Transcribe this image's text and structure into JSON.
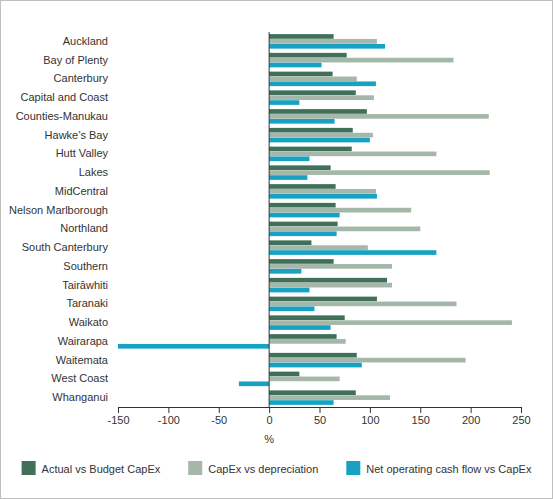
{
  "chart_data": {
    "type": "bar",
    "orientation": "horizontal",
    "categories": [
      "Auckland",
      "Bay of Plenty",
      "Canterbury",
      "Capital and Coast",
      "Counties-Manukau",
      "Hawke’s Bay",
      "Hutt Valley",
      "Lakes",
      "MidCentral",
      "Nelson Marlborough",
      "Northland",
      "South Canterbury",
      "Southern",
      "Tairāwhiti",
      "Taranaki",
      "Waikato",
      "Wairarapa",
      "Waitemata",
      "West Coast",
      "Whanganui"
    ],
    "series": [
      {
        "name": "Actual vs Budget CapEx",
        "color": "#41705a",
        "values": [
          64,
          77,
          63,
          86,
          97,
          83,
          82,
          61,
          66,
          66,
          68,
          42,
          64,
          117,
          107,
          75,
          67,
          87,
          30,
          86
        ]
      },
      {
        "name": "CapEx vs depreciation",
        "color": "#a5b7a8",
        "values": [
          107,
          183,
          87,
          104,
          218,
          103,
          166,
          219,
          106,
          141,
          150,
          98,
          122,
          122,
          186,
          241,
          76,
          195,
          70,
          120
        ]
      },
      {
        "name": "Net operating cash flow vs CapEx",
        "color": "#17a2c4",
        "values": [
          115,
          52,
          106,
          30,
          65,
          100,
          40,
          38,
          107,
          70,
          67,
          166,
          32,
          40,
          45,
          61,
          -150,
          92,
          -30,
          64
        ]
      }
    ],
    "x_label": "%",
    "xlim": [
      -150,
      250
    ],
    "xticks": [
      -150,
      -100,
      -50,
      0,
      50,
      100,
      150,
      200,
      250
    ],
    "grid": false,
    "legend": "bottom"
  }
}
